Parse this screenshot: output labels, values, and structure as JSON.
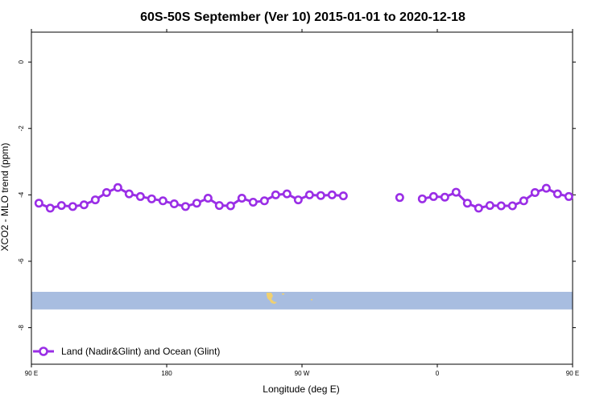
{
  "chart_data": {
    "type": "line",
    "title": "60S-50S September (Ver 10)   2015-01-01 to 2020-12-18",
    "xlabel": "Longitude (deg E)",
    "ylabel": "XCO2 - MLO trend (ppm)",
    "xlim": [
      90,
      450
    ],
    "ylim": [
      -9.1,
      0.9
    ],
    "x_ticks": [
      {
        "value": 90,
        "label": "90 E"
      },
      {
        "value": 180,
        "label": "180"
      },
      {
        "value": 270,
        "label": "90 W"
      },
      {
        "value": 360,
        "label": "0"
      },
      {
        "value": 450,
        "label": "90 E"
      }
    ],
    "x_ticks_top": [
      90,
      180,
      270,
      360,
      450
    ],
    "y_ticks": [
      {
        "value": 0,
        "label": "0"
      },
      {
        "value": -2,
        "label": "-2"
      },
      {
        "value": -4,
        "label": "-4"
      },
      {
        "value": -6,
        "label": "-6"
      },
      {
        "value": -8,
        "label": "-8"
      }
    ],
    "grid": false,
    "legend_position": "bottom-left",
    "series": [
      {
        "name": "Land (Nadir&Glint) and Ocean (Glint)",
        "color": "#9a2ee6",
        "marker": "open-circle",
        "points": [
          [
            95,
            -4.25
          ],
          [
            102.5,
            -4.4
          ],
          [
            110,
            -4.32
          ],
          [
            117.5,
            -4.35
          ],
          [
            125,
            -4.3
          ],
          [
            132.5,
            -4.15
          ],
          [
            140,
            -3.93
          ],
          [
            147.5,
            -3.78
          ],
          [
            155,
            -3.97
          ],
          [
            162.5,
            -4.05
          ],
          [
            170,
            -4.12
          ],
          [
            177.5,
            -4.18
          ],
          [
            185,
            -4.27
          ],
          [
            192.5,
            -4.35
          ],
          [
            200,
            -4.25
          ],
          [
            207.5,
            -4.1
          ],
          [
            215,
            -4.32
          ],
          [
            222.5,
            -4.33
          ],
          [
            230,
            -4.1
          ],
          [
            237.5,
            -4.22
          ],
          [
            245,
            -4.18
          ],
          [
            252.5,
            -4.0
          ],
          [
            260,
            -3.97
          ],
          [
            267.5,
            -4.15
          ],
          [
            275,
            -4.0
          ],
          [
            282.5,
            -4.02
          ],
          [
            290,
            -4.0
          ],
          [
            297.5,
            -4.03
          ],
          null,
          [
            335,
            -4.08
          ],
          null,
          [
            350,
            -4.12
          ],
          [
            357.5,
            -4.05
          ],
          [
            365,
            -4.07
          ],
          [
            372.5,
            -3.92
          ],
          [
            380,
            -4.25
          ],
          [
            387.5,
            -4.4
          ],
          [
            395,
            -4.32
          ],
          [
            402.5,
            -4.33
          ],
          [
            410,
            -4.33
          ],
          [
            417.5,
            -4.18
          ],
          [
            425,
            -3.93
          ],
          [
            432.5,
            -3.8
          ],
          [
            440,
            -3.97
          ],
          [
            447.5,
            -4.05
          ]
        ]
      }
    ],
    "map_strip": {
      "color": "#a8bde0",
      "land_color": "#f0d070",
      "y_range": [
        -7.45,
        -6.92
      ]
    }
  }
}
